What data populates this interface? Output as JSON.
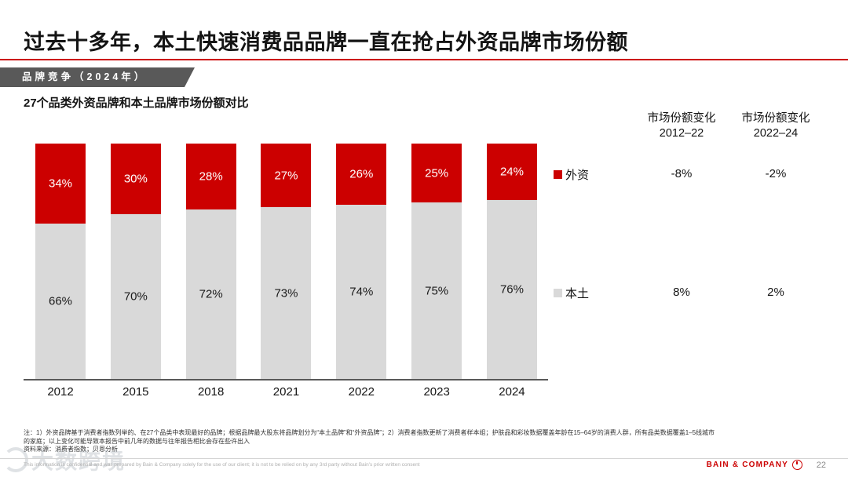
{
  "slide": {
    "title": "过去十多年，本土快速消费品品牌一直在抢占外资品牌市场份额",
    "kicker": "品牌竞争（2024年）",
    "accent_color": "#cc0000",
    "page_number": "22",
    "brand_name": "BAIN & COMPANY",
    "footer_disclaimer": "This information is confidential and was prepared by Bain & Company solely for the use of our client; it is not to be relied on by any 3rd party without Bain's prior written consent",
    "watermark_text": "大数跨境"
  },
  "chart_data": {
    "type": "bar",
    "stacked": true,
    "title": "27个品类外资品牌和本土品牌市场份额对比",
    "categories": [
      "2012",
      "2015",
      "2018",
      "2021",
      "2022",
      "2023",
      "2024"
    ],
    "series": [
      {
        "name": "外资",
        "color": "#cc0000",
        "label_color": "#ffffff",
        "values": [
          34,
          30,
          28,
          27,
          26,
          25,
          24
        ]
      },
      {
        "name": "本土",
        "color": "#d9d9d9",
        "label_color": "#1a1a1a",
        "values": [
          66,
          70,
          72,
          73,
          74,
          75,
          76
        ]
      }
    ],
    "ylim": [
      0,
      100
    ],
    "unit": "%",
    "grid": false,
    "legend_position": "right"
  },
  "comparison": {
    "columns": [
      {
        "label": "市场份额变化",
        "period": "2012–22"
      },
      {
        "label": "市场份额变化",
        "period": "2022–24"
      }
    ],
    "rows": [
      {
        "legend": "外资",
        "color": "#cc0000",
        "values": [
          "-8%",
          "-2%"
        ]
      },
      {
        "legend": "本土",
        "color": "#d9d9d9",
        "values": [
          "8%",
          "2%"
        ]
      }
    ]
  },
  "notes": {
    "line1": "注：1）外资品牌基于消费者指数列举的、在27个品类中表现最好的品牌；根据品牌最大股东将品牌划分为“本土品牌”和“外资品牌”；2）消费者指数更新了消费者样本组；护肤品和彩妆数据覆盖年龄在15–64岁的消费人群，所有品类数据覆盖1–5线城市",
    "line2": "的家庭；以上变化可能导致本报告中前几年的数据与往年报告相比会存在些许出入",
    "source": "资料来源：消费者指数；贝恩分析"
  }
}
